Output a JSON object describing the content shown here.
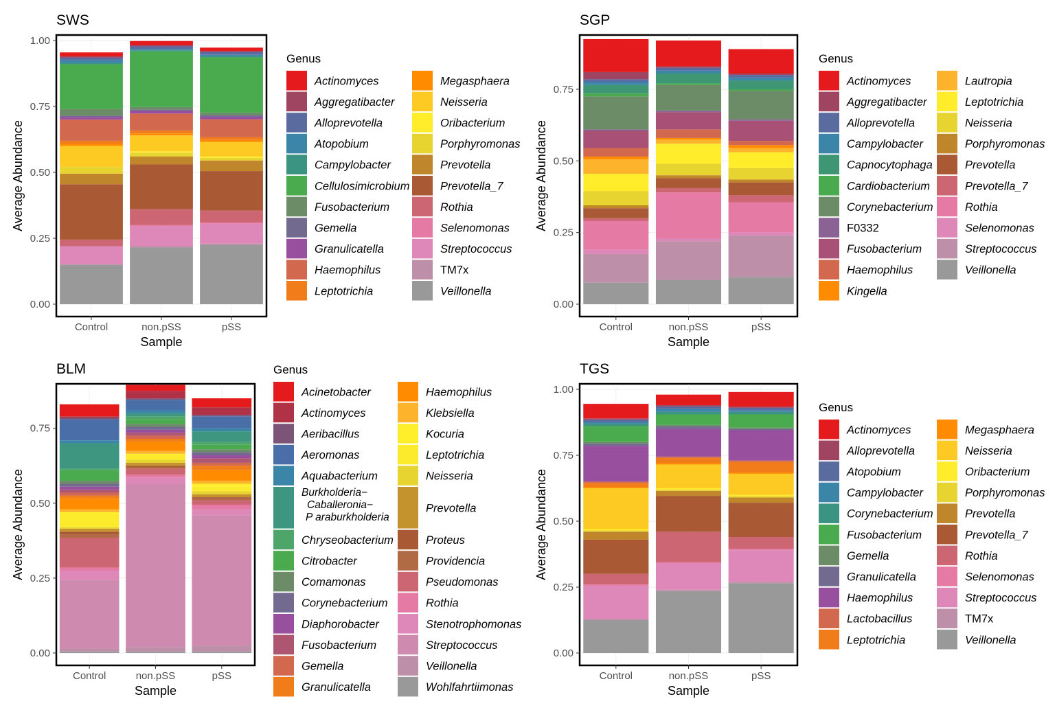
{
  "figure": {
    "ylabel": "Average Abundance",
    "xlabel": "Sample",
    "legend_title": "Genus"
  },
  "chart_data": [
    {
      "type": "bar",
      "stacked": true,
      "title": "SWS",
      "xlabel": "Sample",
      "ylabel": "Average Abundance",
      "categories": [
        "Control",
        "non.pSS",
        "pSS"
      ],
      "ylim": [
        0,
        1.0
      ],
      "yticks": [
        0.0,
        0.25,
        0.5,
        0.75,
        1.0
      ],
      "ytick_labels": [
        "0.00",
        "0.25",
        "0.50",
        "0.75",
        "1.00"
      ],
      "legend_title": "Genus",
      "series": [
        {
          "name": "Veillonella",
          "color": "#999999",
          "values": [
            0.15,
            0.215,
            0.225
          ]
        },
        {
          "name": "TM7x",
          "color": "#BE8FA8",
          "values": [
            0.0,
            0.005,
            0.005
          ]
        },
        {
          "name": "Streptococcus",
          "color": "#DD88B9",
          "values": [
            0.07,
            0.075,
            0.075
          ]
        },
        {
          "name": "Selenomonas",
          "color": "#E57BA5",
          "values": [
            0.0,
            0.005,
            0.005
          ]
        },
        {
          "name": "Rothia",
          "color": "#CC6672",
          "values": [
            0.025,
            0.06,
            0.045
          ]
        },
        {
          "name": "Prevotella_7",
          "color": "#A95A34",
          "values": [
            0.21,
            0.17,
            0.15
          ]
        },
        {
          "name": "Prevotella",
          "color": "#BF862B",
          "values": [
            0.04,
            0.03,
            0.04
          ]
        },
        {
          "name": "Porphyromonas",
          "color": "#E8D430",
          "values": [
            0.025,
            0.015,
            0.01
          ]
        },
        {
          "name": "Oribacterium",
          "color": "#FFEC2A",
          "values": [
            0.0,
            0.005,
            0.005
          ]
        },
        {
          "name": "Neisseria",
          "color": "#FDCA23",
          "values": [
            0.08,
            0.06,
            0.055
          ]
        },
        {
          "name": "Megasphaera",
          "color": "#FF8C00",
          "values": [
            0.008,
            0.008,
            0.008
          ]
        },
        {
          "name": "Leptotrichia",
          "color": "#F07D1A",
          "values": [
            0.012,
            0.01,
            0.01
          ]
        },
        {
          "name": "Haemophilus",
          "color": "#D2694F",
          "values": [
            0.08,
            0.065,
            0.068
          ]
        },
        {
          "name": "Granulicatella",
          "color": "#98509E",
          "values": [
            0.01,
            0.01,
            0.01
          ]
        },
        {
          "name": "Gemella",
          "color": "#736A8F",
          "values": [
            0.005,
            0.005,
            0.005
          ]
        },
        {
          "name": "Fusobacterium",
          "color": "#6C8B67",
          "values": [
            0.025,
            0.01,
            0.01
          ]
        },
        {
          "name": "Cellulosimicrobium",
          "color": "#4AAA4E",
          "values": [
            0.17,
            0.21,
            0.21
          ]
        },
        {
          "name": "Campylobacter",
          "color": "#3B9482",
          "values": [
            0.005,
            0.005,
            0.005
          ]
        },
        {
          "name": "Atopobium",
          "color": "#3A85A8",
          "values": [
            0.01,
            0.005,
            0.005
          ]
        },
        {
          "name": "Alloprevotella",
          "color": "#5A6BA0",
          "values": [
            0.01,
            0.01,
            0.01
          ]
        },
        {
          "name": "Aggregatibacter",
          "color": "#A04561",
          "values": [
            0.005,
            0.005,
            0.005
          ]
        },
        {
          "name": "Actinomyces",
          "color": "#E41A1C",
          "values": [
            0.015,
            0.015,
            0.012
          ]
        }
      ]
    },
    {
      "type": "bar",
      "stacked": true,
      "title": "SGP",
      "xlabel": "Sample",
      "ylabel": "Average Abundance",
      "categories": [
        "Control",
        "non.pSS",
        "pSS"
      ],
      "ylim": [
        0,
        0.92
      ],
      "yticks": [
        0.0,
        0.25,
        0.5,
        0.75
      ],
      "ytick_labels": [
        "0.00",
        "0.25",
        "0.50",
        "0.75"
      ],
      "legend_title": "Genus",
      "series": [
        {
          "name": "Veillonella",
          "color": "#999999",
          "values": [
            0.075,
            0.085,
            0.095
          ]
        },
        {
          "name": "Streptococcus",
          "color": "#BE8FA8",
          "values": [
            0.1,
            0.135,
            0.145
          ]
        },
        {
          "name": "Selenomonas",
          "color": "#DD88B9",
          "values": [
            0.015,
            0.01,
            0.01
          ]
        },
        {
          "name": "Rothia",
          "color": "#E57BA5",
          "values": [
            0.1,
            0.16,
            0.105
          ]
        },
        {
          "name": "Prevotella_7",
          "color": "#CC6672",
          "values": [
            0.01,
            0.015,
            0.025
          ]
        },
        {
          "name": "Prevotella",
          "color": "#A95A34",
          "values": [
            0.035,
            0.035,
            0.045
          ]
        },
        {
          "name": "Porphyromonas",
          "color": "#BF862B",
          "values": [
            0.01,
            0.01,
            0.01
          ]
        },
        {
          "name": "Neisseria",
          "color": "#E8D430",
          "values": [
            0.05,
            0.04,
            0.04
          ]
        },
        {
          "name": "Leptotrichia",
          "color": "#FFEC2A",
          "values": [
            0.06,
            0.07,
            0.055
          ]
        },
        {
          "name": "Lautropia",
          "color": "#FDB32B",
          "values": [
            0.05,
            0.015,
            0.015
          ]
        },
        {
          "name": "Kingella",
          "color": "#FF8C00",
          "values": [
            0.01,
            0.005,
            0.01
          ]
        },
        {
          "name": "Haemophilus",
          "color": "#D2694F",
          "values": [
            0.03,
            0.03,
            0.015
          ]
        },
        {
          "name": "Fusobacterium",
          "color": "#A95077",
          "values": [
            0.06,
            0.06,
            0.07
          ]
        },
        {
          "name": "F0332",
          "color": "#8A6394",
          "values": [
            0.005,
            0.005,
            0.005
          ]
        },
        {
          "name": "Corynebacterium",
          "color": "#6C8B67",
          "values": [
            0.115,
            0.09,
            0.1
          ]
        },
        {
          "name": "Cardiobacterium",
          "color": "#4AAA4E",
          "values": [
            0.01,
            0.005,
            0.005
          ]
        },
        {
          "name": "Capnocytophaga",
          "color": "#3E9675",
          "values": [
            0.03,
            0.035,
            0.03
          ]
        },
        {
          "name": "Campylobacter",
          "color": "#3A85A8",
          "values": [
            0.01,
            0.01,
            0.01
          ]
        },
        {
          "name": "Alloprevotella",
          "color": "#5A6BA0",
          "values": [
            0.01,
            0.01,
            0.01
          ]
        },
        {
          "name": "Aggregatibacter",
          "color": "#A04561",
          "values": [
            0.025,
            0.005,
            0.005
          ]
        },
        {
          "name": "Actinomyces",
          "color": "#E41A1C",
          "values": [
            0.115,
            0.09,
            0.085
          ]
        }
      ]
    },
    {
      "type": "bar",
      "stacked": true,
      "title": "BLM",
      "xlabel": "Sample",
      "ylabel": "Average Abundance",
      "categories": [
        "Control",
        "non.pSS",
        "pSS"
      ],
      "ylim": [
        0,
        0.88
      ],
      "yticks": [
        0.0,
        0.25,
        0.5,
        0.75
      ],
      "ytick_labels": [
        "0.00",
        "0.25",
        "0.50",
        "0.75"
      ],
      "legend_title": "Genus",
      "series": [
        {
          "name": "Wohlfahrtiimonas",
          "color": "#999999",
          "values": [
            0.005,
            0.005,
            0.005
          ]
        },
        {
          "name": "Veillonella",
          "color": "#BE8FA8",
          "values": [
            0.01,
            0.015,
            0.02
          ]
        },
        {
          "name": "Streptococcus",
          "color": "#CF8AB0",
          "values": [
            0.23,
            0.545,
            0.435
          ]
        },
        {
          "name": "Stenotrophomonas",
          "color": "#DD88B9",
          "values": [
            0.03,
            0.02,
            0.02
          ]
        },
        {
          "name": "Rothia",
          "color": "#E57BA5",
          "values": [
            0.01,
            0.01,
            0.015
          ]
        },
        {
          "name": "Pseudomonas",
          "color": "#CC6672",
          "values": [
            0.1,
            0.02,
            0.015
          ]
        },
        {
          "name": "Providencia",
          "color": "#B06A45",
          "values": [
            0.01,
            0.005,
            0.005
          ]
        },
        {
          "name": "Proteus",
          "color": "#A95A34",
          "values": [
            0.01,
            0.005,
            0.005
          ]
        },
        {
          "name": "Prevotella",
          "color": "#C4932D",
          "values": [
            0.01,
            0.01,
            0.01
          ]
        },
        {
          "name": "Neisseria",
          "color": "#E8D430",
          "values": [
            0.005,
            0.01,
            0.01
          ]
        },
        {
          "name": "Leptotrichia",
          "color": "#FCEB2C",
          "values": [
            0.045,
            0.015,
            0.015
          ]
        },
        {
          "name": "Kocuria",
          "color": "#FFEF2A",
          "values": [
            0.005,
            0.005,
            0.01
          ]
        },
        {
          "name": "Klebsiella",
          "color": "#FDB32B",
          "values": [
            0.01,
            0.01,
            0.01
          ]
        },
        {
          "name": "Haemophilus",
          "color": "#FF8C00",
          "values": [
            0.035,
            0.03,
            0.035
          ]
        },
        {
          "name": "Granulicatella",
          "color": "#F07D1A",
          "values": [
            0.01,
            0.01,
            0.015
          ]
        },
        {
          "name": "Gemella",
          "color": "#D2694F",
          "values": [
            0.01,
            0.01,
            0.01
          ]
        },
        {
          "name": "Fusobacterium",
          "color": "#AE5572",
          "values": [
            0.01,
            0.01,
            0.015
          ]
        },
        {
          "name": "Diaphorobacter",
          "color": "#98509E",
          "values": [
            0.01,
            0.01,
            0.01
          ]
        },
        {
          "name": "Corynebacterium",
          "color": "#736A8F",
          "values": [
            0.01,
            0.01,
            0.01
          ]
        },
        {
          "name": "Comamonas",
          "color": "#6C8B67",
          "values": [
            0.01,
            0.01,
            0.01
          ]
        },
        {
          "name": "Citrobacter",
          "color": "#4AAA4E",
          "values": [
            0.035,
            0.015,
            0.015
          ]
        },
        {
          "name": "Chryseobacterium",
          "color": "#4EA569",
          "values": [
            0.005,
            0.01,
            0.01
          ]
        },
        {
          "name": "Burkholderia-Caballeronia-Paraburkholderia",
          "color": "#3E9680",
          "values": [
            0.085,
            0.01,
            0.035
          ]
        },
        {
          "name": "Aquabacterium",
          "color": "#3A85A8",
          "values": [
            0.01,
            0.01,
            0.01
          ]
        },
        {
          "name": "Aeromonas",
          "color": "#4A6FA8",
          "values": [
            0.07,
            0.035,
            0.04
          ]
        },
        {
          "name": "Aeribacillus",
          "color": "#7C5477",
          "values": [
            0.005,
            0.005,
            0.005
          ]
        },
        {
          "name": "Actinomyces",
          "color": "#B03246",
          "values": [
            0.005,
            0.025,
            0.025
          ]
        },
        {
          "name": "Acinetobacter",
          "color": "#E41A1C",
          "values": [
            0.04,
            0.02,
            0.03
          ]
        }
      ]
    },
    {
      "type": "bar",
      "stacked": true,
      "title": "TGS",
      "xlabel": "Sample",
      "ylabel": "Average Abundance",
      "categories": [
        "Control",
        "non.pSS",
        "pSS"
      ],
      "ylim": [
        0,
        1.0
      ],
      "yticks": [
        0.0,
        0.25,
        0.5,
        0.75,
        1.0
      ],
      "ytick_labels": [
        "0.00",
        "0.25",
        "0.50",
        "0.75",
        "1.00"
      ],
      "legend_title": "Genus",
      "series": [
        {
          "name": "Veillonella",
          "color": "#999999",
          "values": [
            0.125,
            0.235,
            0.265
          ]
        },
        {
          "name": "TM7x",
          "color": "#BE8FA8",
          "values": [
            0.005,
            0.005,
            0.005
          ]
        },
        {
          "name": "Streptococcus",
          "color": "#DD88B9",
          "values": [
            0.125,
            0.1,
            0.12
          ]
        },
        {
          "name": "Selenomonas",
          "color": "#E57BA5",
          "values": [
            0.005,
            0.005,
            0.005
          ]
        },
        {
          "name": "Rothia",
          "color": "#CC6672",
          "values": [
            0.04,
            0.115,
            0.045
          ]
        },
        {
          "name": "Prevotella_7",
          "color": "#A95A34",
          "values": [
            0.13,
            0.135,
            0.13
          ]
        },
        {
          "name": "Prevotella",
          "color": "#BF862B",
          "values": [
            0.03,
            0.02,
            0.02
          ]
        },
        {
          "name": "Porphyromonas",
          "color": "#E8D430",
          "values": [
            0.005,
            0.005,
            0.005
          ]
        },
        {
          "name": "Oribacterium",
          "color": "#FFEC2A",
          "values": [
            0.005,
            0.005,
            0.005
          ]
        },
        {
          "name": "Neisseria",
          "color": "#FDCA23",
          "values": [
            0.155,
            0.09,
            0.08
          ]
        },
        {
          "name": "Megasphaera",
          "color": "#FF8C00",
          "values": [
            0.005,
            0.005,
            0.005
          ]
        },
        {
          "name": "Leptotrichia",
          "color": "#F07D1A",
          "values": [
            0.015,
            0.02,
            0.04
          ]
        },
        {
          "name": "Lactobacillus",
          "color": "#D2694F",
          "values": [
            0.005,
            0.005,
            0.005
          ]
        },
        {
          "name": "Haemophilus",
          "color": "#98509E",
          "values": [
            0.135,
            0.105,
            0.115
          ]
        },
        {
          "name": "Granulicatella",
          "color": "#736A8F",
          "values": [
            0.01,
            0.01,
            0.005
          ]
        },
        {
          "name": "Gemella",
          "color": "#6C8B67",
          "values": [
            0.005,
            0.005,
            0.005
          ]
        },
        {
          "name": "Fusobacterium",
          "color": "#4AAA4E",
          "values": [
            0.06,
            0.04,
            0.05
          ]
        },
        {
          "name": "Corynebacterium",
          "color": "#3B9482",
          "values": [
            0.01,
            0.01,
            0.01
          ]
        },
        {
          "name": "Campylobacter",
          "color": "#3A85A8",
          "values": [
            0.005,
            0.01,
            0.005
          ]
        },
        {
          "name": "Atopobium",
          "color": "#5A6BA0",
          "values": [
            0.01,
            0.01,
            0.01
          ]
        },
        {
          "name": "Alloprevotella",
          "color": "#A04561",
          "values": [
            0.005,
            0.005,
            0.005
          ]
        },
        {
          "name": "Actinomyces",
          "color": "#E41A1C",
          "values": [
            0.055,
            0.04,
            0.055
          ]
        }
      ]
    }
  ]
}
